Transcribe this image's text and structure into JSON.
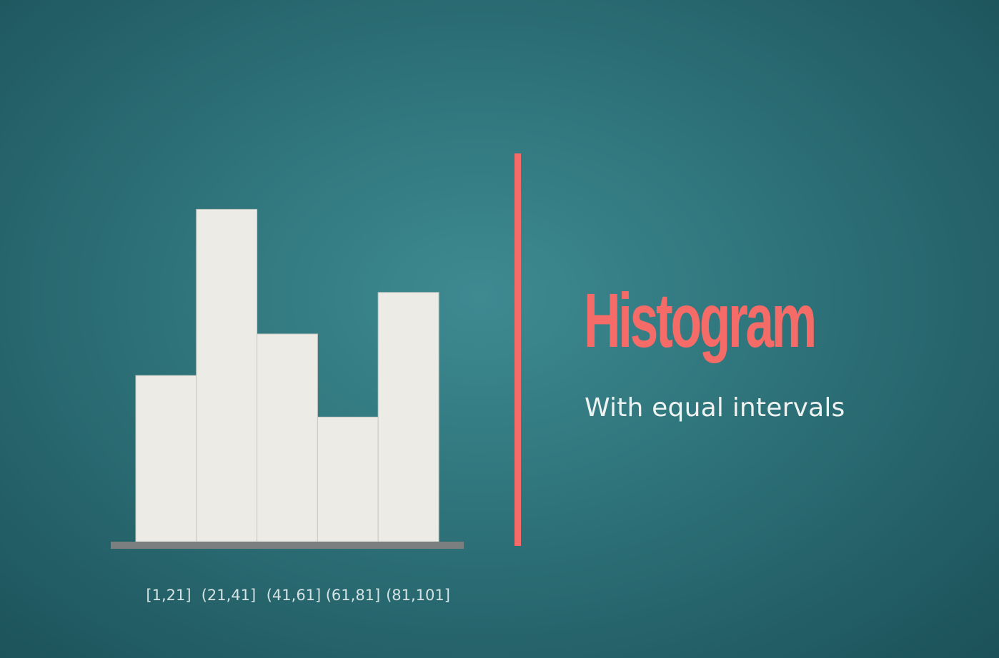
{
  "colors": {
    "bar_fill": "#ecebe5",
    "bar_edge": "#c9c8c1",
    "baseline": "#7c7f7f",
    "accent": "#f56b67",
    "subtitle_text": "#eef2f1",
    "tick_text": "#d4e3e3"
  },
  "heading": {
    "title": "Histogram",
    "subtitle": "With equal intervals"
  },
  "chart_data": {
    "type": "bar",
    "title": "Histogram",
    "subtitle": "With equal intervals",
    "categories": [
      "[1,21]",
      "(21,41]",
      "(41,61]",
      "(61,81]",
      "(81,101]"
    ],
    "values": [
      4,
      8,
      5,
      3,
      6
    ],
    "ylim": [
      0,
      8
    ],
    "grid": false,
    "legend": "none",
    "xlabel": "",
    "ylabel": ""
  }
}
